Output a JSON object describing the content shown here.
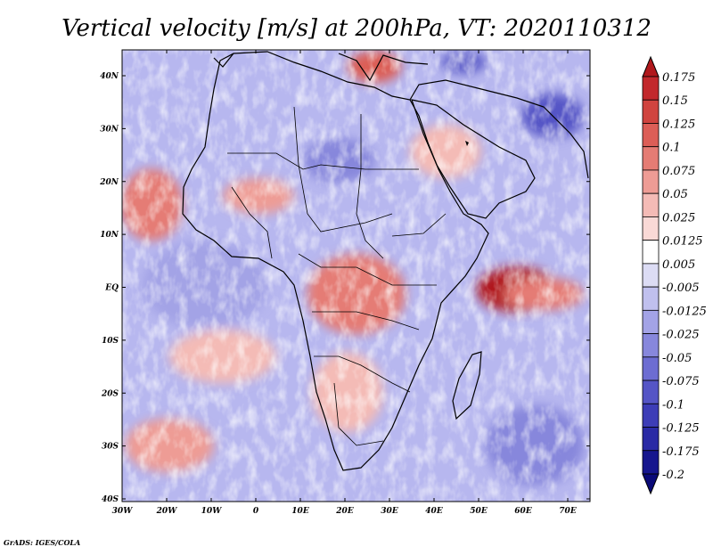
{
  "title": "Vertical velocity [m/s] at 200hPa, VT: 2020110312",
  "credit": "GrADS: IGES/COLA",
  "map": {
    "lat_ticks": [
      "40N",
      "30N",
      "20N",
      "10N",
      "EQ",
      "10S",
      "20S",
      "30S",
      "40S"
    ],
    "lon_ticks": [
      "30W",
      "20W",
      "10W",
      "0",
      "10E",
      "20E",
      "30E",
      "40E",
      "50E",
      "60E",
      "70E"
    ]
  },
  "colorbar": {
    "labels": [
      "0.175",
      "0.15",
      "0.125",
      "0.1",
      "0.075",
      "0.05",
      "0.025",
      "0.0125",
      "0.005",
      "-0.005",
      "-0.0125",
      "-0.025",
      "-0.05",
      "-0.075",
      "-0.1",
      "-0.125",
      "-0.175",
      "-0.2"
    ],
    "colors": [
      "#b0181c",
      "#c2282c",
      "#d0443f",
      "#dc5e57",
      "#e57c74",
      "#ee9c95",
      "#f4bbb6",
      "#f9d9d6",
      "#ffffff",
      "#dcdcf4",
      "#c0c0ee",
      "#a3a3e6",
      "#8787dc",
      "#6d6dd2",
      "#5555c6",
      "#3d3db7",
      "#2a2aa5",
      "#16168e",
      "#0a0a78"
    ]
  }
}
